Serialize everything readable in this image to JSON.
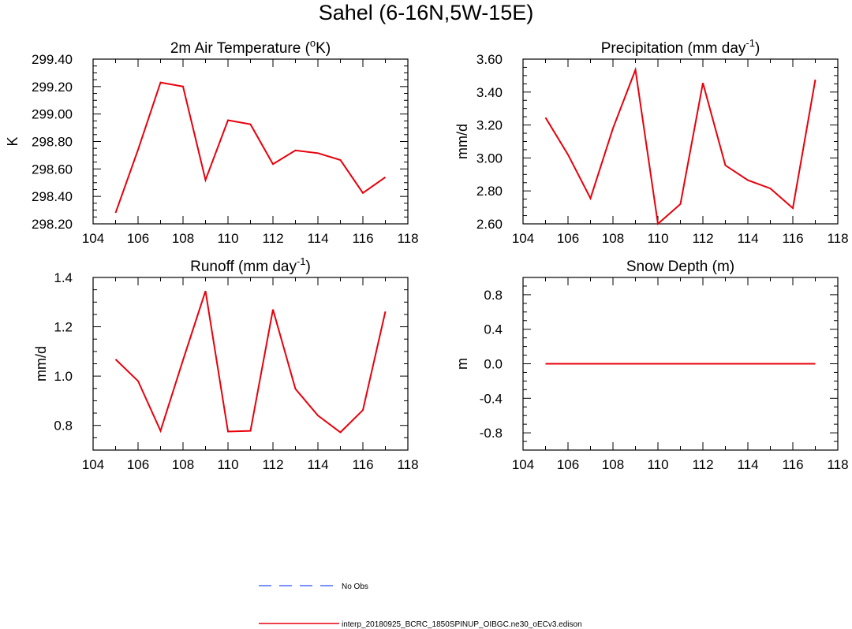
{
  "title": "Sahel (6-16N,5W-15E)",
  "chart_data": [
    {
      "type": "line",
      "title": "2m Air Temperature (",
      "title_sup": "o",
      "title_after": "K)",
      "xlabel": "",
      "ylabel": "K",
      "xlim": [
        104,
        118
      ],
      "ylim": [
        298.2,
        299.4
      ],
      "xticks": [
        104,
        106,
        108,
        110,
        112,
        114,
        116,
        118
      ],
      "xtick_labels": [
        "104",
        "106",
        "108",
        "110",
        "112",
        "114",
        "116",
        "118"
      ],
      "xminor_step": 1,
      "yticks": [
        298.2,
        298.4,
        298.6,
        298.8,
        299.0,
        299.2,
        299.4
      ],
      "ytick_labels": [
        "298.20",
        "298.40",
        "298.60",
        "298.80",
        "299.00",
        "299.20",
        "299.40"
      ],
      "yminor_step": 0.05,
      "series": [
        {
          "name": "interp_20180925_BCRC_1850SPINUP_OIBGC.ne30_oECv3.edison",
          "color": "#e8000b",
          "x": [
            105,
            106,
            107,
            108,
            109,
            110,
            111,
            112,
            113,
            114,
            115,
            116,
            117
          ],
          "y": [
            298.28,
            298.74,
            299.23,
            299.2,
            298.52,
            298.955,
            298.925,
            298.635,
            298.735,
            298.715,
            298.665,
            298.425,
            298.54
          ]
        }
      ]
    },
    {
      "type": "line",
      "title": "Precipitation (mm day",
      "title_sup": "-1",
      "title_after": ")",
      "xlabel": "",
      "ylabel": "mm/d",
      "xlim": [
        104,
        118
      ],
      "ylim": [
        2.6,
        3.6
      ],
      "xticks": [
        104,
        106,
        108,
        110,
        112,
        114,
        116,
        118
      ],
      "xtick_labels": [
        "104",
        "106",
        "108",
        "110",
        "112",
        "114",
        "116",
        "118"
      ],
      "xminor_step": 1,
      "yticks": [
        2.6,
        2.8,
        3.0,
        3.2,
        3.4,
        3.6
      ],
      "ytick_labels": [
        "2.60",
        "2.80",
        "3.00",
        "3.20",
        "3.40",
        "3.60"
      ],
      "yminor_step": 0.05,
      "series": [
        {
          "name": "interp_20180925_BCRC_1850SPINUP_OIBGC.ne30_oECv3.edison",
          "color": "#e8000b",
          "x": [
            105,
            106,
            107,
            108,
            109,
            110,
            111,
            112,
            113,
            114,
            115,
            116,
            117
          ],
          "y": [
            3.245,
            3.02,
            2.755,
            3.18,
            3.535,
            2.6,
            2.72,
            3.455,
            2.955,
            2.865,
            2.815,
            2.695,
            3.475
          ]
        }
      ]
    },
    {
      "type": "line",
      "title": "Runoff (mm day",
      "title_sup": "-1",
      "title_after": ")",
      "xlabel": "",
      "ylabel": "mm/d",
      "xlim": [
        104,
        118
      ],
      "ylim": [
        0.7,
        1.4
      ],
      "xticks": [
        104,
        106,
        108,
        110,
        112,
        114,
        116,
        118
      ],
      "xtick_labels": [
        "104",
        "106",
        "108",
        "110",
        "112",
        "114",
        "116",
        "118"
      ],
      "xminor_step": 1,
      "yticks": [
        0.8,
        1.0,
        1.2,
        1.4
      ],
      "ytick_labels": [
        "0.8",
        "1.0",
        "1.2",
        "1.4"
      ],
      "yminor_step": 0.05,
      "series": [
        {
          "name": "interp_20180925_BCRC_1850SPINUP_OIBGC.ne30_oECv3.edison",
          "color": "#e8000b",
          "x": [
            105,
            106,
            107,
            108,
            109,
            110,
            111,
            112,
            113,
            114,
            115,
            116,
            117
          ],
          "y": [
            1.068,
            0.98,
            0.778,
            1.065,
            1.345,
            0.775,
            0.778,
            1.27,
            0.948,
            0.84,
            0.772,
            0.862,
            1.262
          ]
        }
      ]
    },
    {
      "type": "line",
      "title": "Snow Depth (m)",
      "title_sup": "",
      "title_after": "",
      "xlabel": "",
      "ylabel": "m",
      "xlim": [
        104,
        118
      ],
      "ylim": [
        -1.0,
        1.0
      ],
      "xticks": [
        104,
        106,
        108,
        110,
        112,
        114,
        116,
        118
      ],
      "xtick_labels": [
        "104",
        "106",
        "108",
        "110",
        "112",
        "114",
        "116",
        "118"
      ],
      "xminor_step": 1,
      "yticks": [
        -0.8,
        -0.4,
        0.0,
        0.4,
        0.8
      ],
      "ytick_labels": [
        "-0.8",
        "-0.4",
        "0.0",
        "0.4",
        "0.8"
      ],
      "yminor_step": 0.1,
      "series": [
        {
          "name": "interp_20180925_BCRC_1850SPINUP_OIBGC.ne30_oECv3.edison",
          "color": "#e8000b",
          "x": [
            105,
            106,
            107,
            108,
            109,
            110,
            111,
            112,
            113,
            114,
            115,
            116,
            117
          ],
          "y": [
            0,
            0,
            0,
            0,
            0,
            0,
            0,
            0,
            0,
            0,
            0,
            0,
            0
          ]
        }
      ]
    }
  ],
  "legend": [
    {
      "label": "No Obs",
      "color": "#4f6bff",
      "style": "dashed"
    },
    {
      "label": "interp_20180925_BCRC_1850SPINUP_OIBGC.ne30_oECv3.edison",
      "color": "#e8000b",
      "style": "solid"
    }
  ]
}
